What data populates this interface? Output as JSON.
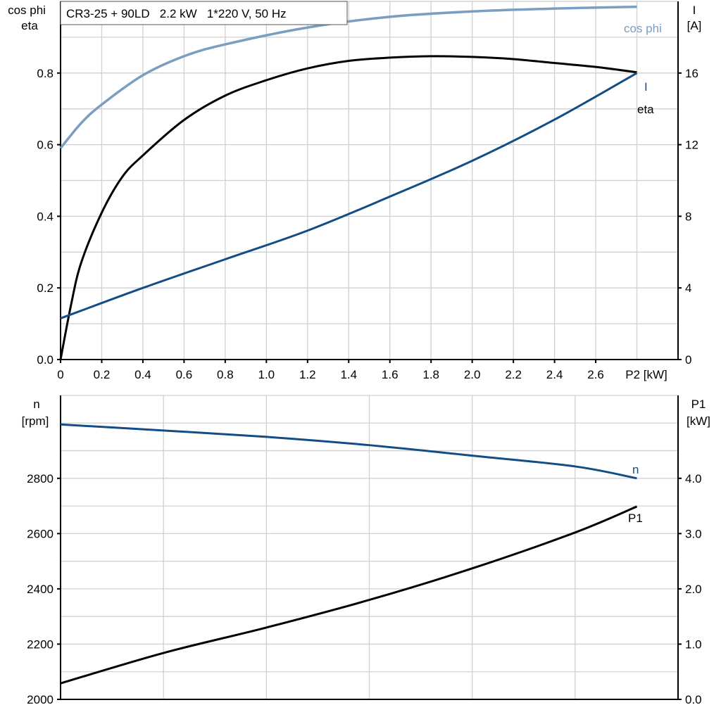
{
  "title": "CR3-25 + 90LD   2.2 kW   1*220 V, 50 Hz",
  "colors": {
    "cos_phi": "#7a9ebf",
    "current": "#124d85",
    "eta": "#000000",
    "speed": "#124d85",
    "p1": "#000000",
    "grid": "#d0d0d0"
  },
  "chart_data": [
    {
      "type": "line",
      "xlabel": "P2 [kW]",
      "ylabel_left": [
        "cos phi",
        "eta"
      ],
      "ylabel_right": [
        "I",
        "[A]"
      ],
      "xlim": [
        0,
        3.0
      ],
      "ylim_left": [
        0,
        1.0
      ],
      "ylim_right": [
        0,
        20
      ],
      "x_ticks": [
        "0",
        "0.2",
        "0.4",
        "0.6",
        "0.8",
        "1.0",
        "1.2",
        "1.4",
        "1.6",
        "1.8",
        "2.0",
        "2.2",
        "2.4",
        "2.6"
      ],
      "y_ticks_left": [
        "0.0",
        "0.2",
        "0.4",
        "0.6",
        "0.8"
      ],
      "y_ticks_right": [
        "0",
        "4",
        "8",
        "12",
        "16"
      ],
      "grid": true,
      "series": [
        {
          "name": "cos phi",
          "axis": "left",
          "x": [
            0,
            0.1,
            0.2,
            0.4,
            0.6,
            0.8,
            1.2,
            1.6,
            2.0,
            2.4,
            2.8
          ],
          "y": [
            0.59,
            0.66,
            0.712,
            0.794,
            0.847,
            0.88,
            0.927,
            0.957,
            0.972,
            0.98,
            0.985
          ]
        },
        {
          "name": "eta",
          "axis": "left",
          "x": [
            0,
            0.05,
            0.1,
            0.2,
            0.3,
            0.4,
            0.6,
            0.8,
            1.0,
            1.2,
            1.4,
            1.6,
            1.8,
            2.0,
            2.2,
            2.4,
            2.6,
            2.8
          ],
          "y": [
            0,
            0.15,
            0.27,
            0.41,
            0.51,
            0.57,
            0.669,
            0.737,
            0.78,
            0.813,
            0.834,
            0.843,
            0.847,
            0.845,
            0.839,
            0.828,
            0.817,
            0.802
          ]
        },
        {
          "name": "I",
          "axis": "right",
          "x": [
            0,
            0.4,
            0.8,
            1.2,
            1.6,
            2.0,
            2.4,
            2.8
          ],
          "y": [
            2.3,
            4.0,
            5.6,
            7.2,
            9.1,
            11.1,
            13.4,
            16.0
          ]
        }
      ]
    },
    {
      "type": "line",
      "ylabel_left": [
        "n",
        "[rpm]"
      ],
      "ylabel_right": [
        "P1",
        "[kW]"
      ],
      "xlim": [
        0,
        3.0
      ],
      "ylim_left": [
        2000,
        3100
      ],
      "ylim_right": [
        0,
        5.5
      ],
      "y_ticks_left": [
        "2000",
        "2200",
        "2400",
        "2600",
        "2800"
      ],
      "y_ticks_right": [
        "0.0",
        "1.0",
        "2.0",
        "3.0",
        "4.0"
      ],
      "grid": true,
      "series": [
        {
          "name": "n",
          "axis": "left",
          "x": [
            0,
            0.5,
            1.0,
            1.5,
            2.0,
            2.5,
            2.8
          ],
          "y": [
            2995,
            2973,
            2950,
            2920,
            2882,
            2843,
            2800
          ]
        },
        {
          "name": "P1",
          "axis": "right",
          "x": [
            0,
            0.5,
            1.0,
            1.5,
            2.0,
            2.5,
            2.8
          ],
          "y": [
            0.29,
            0.84,
            1.3,
            1.8,
            2.37,
            3.02,
            3.49
          ]
        }
      ]
    }
  ]
}
